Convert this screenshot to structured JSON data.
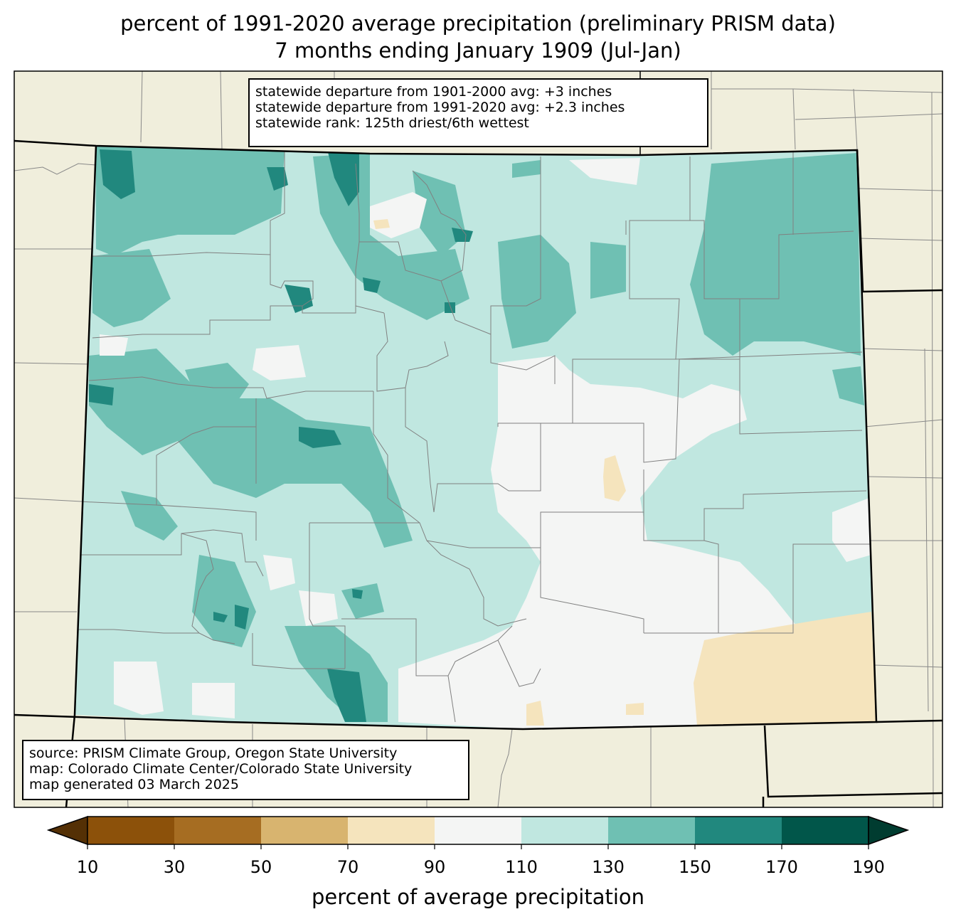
{
  "title": {
    "line1": "percent of 1991-2020 average precipitation (preliminary PRISM data)",
    "line2": "7 months ending January 1909 (Jul-Jan)"
  },
  "stats_box": {
    "line1": "statewide departure from 1901-2000 avg: +3 inches",
    "line2": "statewide departure from 1991-2020 avg: +2.3 inches",
    "line3": "statewide rank: 125th driest/6th wettest"
  },
  "source_box": {
    "line1": "source: PRISM Climate Group, Oregon State University",
    "line2": "map: Colorado Climate Center/Colorado State University",
    "line3": "map generated 03 March 2025"
  },
  "colorbar": {
    "label": "percent of average precipitation",
    "ticks": [
      "10",
      "30",
      "50",
      "70",
      "90",
      "110",
      "130",
      "150",
      "170",
      "190"
    ],
    "under_color": "#543005",
    "over_color": "#003c30",
    "colors": [
      "#8c510a",
      "#a66d22",
      "#d8b46f",
      "#f5e4bd",
      "#f4f5f4",
      "#c0e7e0",
      "#6fc0b3",
      "#21887e",
      "#01564a"
    ]
  },
  "map": {
    "land_color": "#f0eedc",
    "state": "Colorado",
    "dominant_category": "110-130",
    "dry_area": "southeast, 70-90"
  }
}
